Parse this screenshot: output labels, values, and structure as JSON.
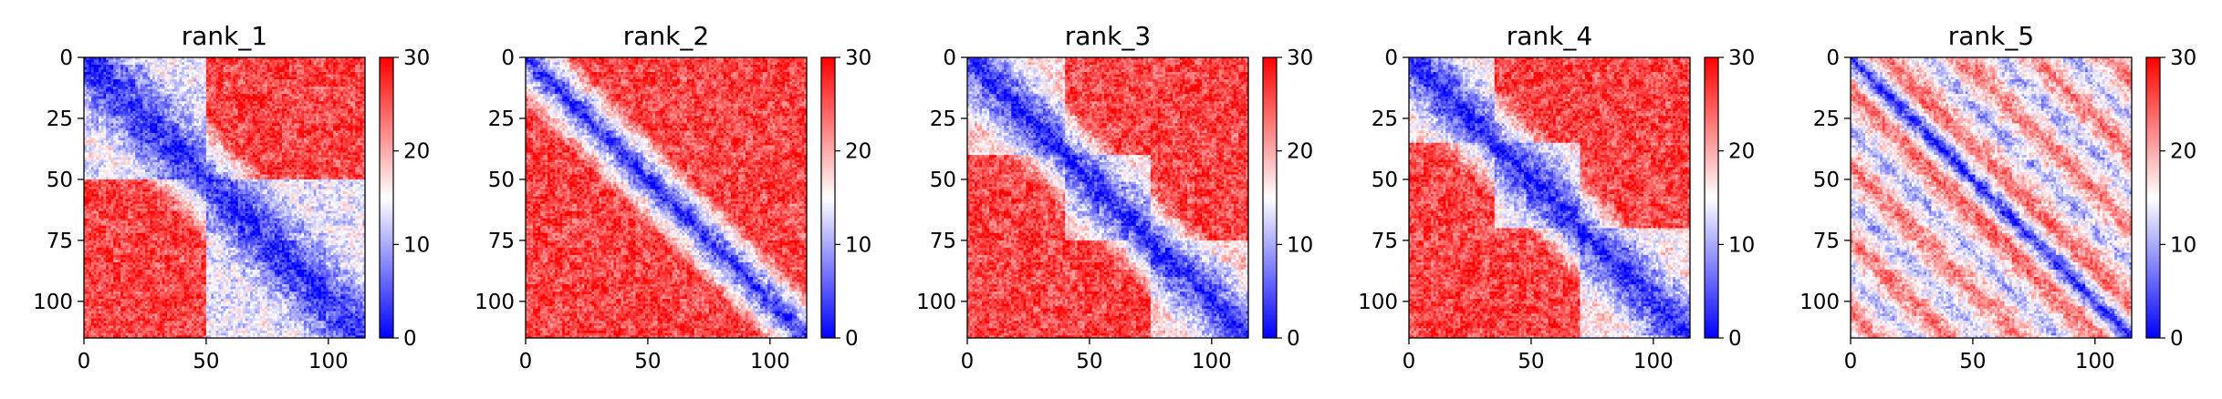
{
  "chart_data": [
    {
      "type": "heatmap",
      "title": "rank_1",
      "matrix_size": 115,
      "x_ticks": [
        0,
        50,
        100
      ],
      "y_ticks": [
        0,
        25,
        50,
        75,
        100
      ],
      "xlim": [
        0,
        115
      ],
      "ylim": [
        115,
        0
      ],
      "colorbar": {
        "min": 0,
        "max": 30,
        "ticks": [
          0,
          10,
          20,
          30
        ],
        "colormap": "bwr"
      },
      "pattern": {
        "diag_width": 12,
        "blocks": [
          [
            0,
            50
          ],
          [
            50,
            115
          ]
        ],
        "block_level": 14,
        "offdiag_bands": [],
        "offdiag_level": 22
      }
    },
    {
      "type": "heatmap",
      "title": "rank_2",
      "matrix_size": 115,
      "x_ticks": [
        0,
        50,
        100
      ],
      "y_ticks": [
        0,
        25,
        50,
        75,
        100
      ],
      "xlim": [
        0,
        115
      ],
      "ylim": [
        115,
        0
      ],
      "colorbar": {
        "min": 0,
        "max": 30,
        "ticks": [
          0,
          10,
          20,
          30
        ],
        "colormap": "bwr"
      },
      "pattern": {
        "diag_width": 9,
        "blocks": [],
        "block_level": 22,
        "offdiag_bands": [],
        "offdiag_level": 26
      }
    },
    {
      "type": "heatmap",
      "title": "rank_3",
      "matrix_size": 115,
      "x_ticks": [
        0,
        50,
        100
      ],
      "y_ticks": [
        0,
        25,
        50,
        75,
        100
      ],
      "xlim": [
        0,
        115
      ],
      "ylim": [
        115,
        0
      ],
      "colorbar": {
        "min": 0,
        "max": 30,
        "ticks": [
          0,
          10,
          20,
          30
        ],
        "colormap": "bwr"
      },
      "pattern": {
        "diag_width": 11,
        "blocks": [
          [
            0,
            40
          ],
          [
            40,
            75
          ],
          [
            75,
            115
          ]
        ],
        "block_level": 17,
        "offdiag_bands": [],
        "offdiag_level": 23
      }
    },
    {
      "type": "heatmap",
      "title": "rank_4",
      "matrix_size": 115,
      "x_ticks": [
        0,
        50,
        100
      ],
      "y_ticks": [
        0,
        25,
        50,
        75,
        100
      ],
      "xlim": [
        0,
        115
      ],
      "ylim": [
        115,
        0
      ],
      "colorbar": {
        "min": 0,
        "max": 30,
        "ticks": [
          0,
          10,
          20,
          30
        ],
        "colormap": "bwr"
      },
      "pattern": {
        "diag_width": 11,
        "blocks": [
          [
            0,
            35
          ],
          [
            35,
            70
          ],
          [
            70,
            115
          ]
        ],
        "block_level": 16,
        "offdiag_bands": [],
        "offdiag_level": 22
      }
    },
    {
      "type": "heatmap",
      "title": "rank_5",
      "matrix_size": 115,
      "x_ticks": [
        0,
        50,
        100
      ],
      "y_ticks": [
        0,
        25,
        50,
        75,
        100
      ],
      "xlim": [
        0,
        115
      ],
      "ylim": [
        115,
        0
      ],
      "colorbar": {
        "min": 0,
        "max": 30,
        "ticks": [
          0,
          10,
          20,
          30
        ],
        "colormap": "bwr"
      },
      "pattern": {
        "diag_width": 5,
        "blocks": [],
        "block_level": 22,
        "offdiag_bands": [
          30
        ],
        "offdiag_level": 23
      }
    }
  ],
  "colors": {
    "low": "#0000ff",
    "mid": "#ffffff",
    "high": "#ff0000",
    "axis": "#000000"
  }
}
